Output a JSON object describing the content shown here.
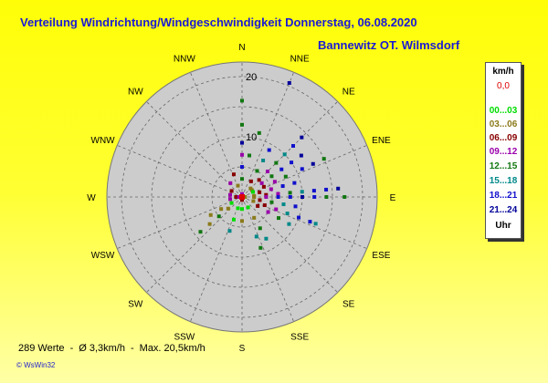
{
  "title": "Verteilung Windrichtung/Windgeschwindigkeit  Donnerstag, 06.08.2020",
  "subtitle": "Bannewitz OT. Wilmsdorf",
  "footer": {
    "count": "289 Werte",
    "separator": "-",
    "avg": "Ø 3,3km/h",
    "max": "Max. 20,5km/h"
  },
  "credit": "© WsWin32",
  "legend": {
    "unit": "km/h",
    "zero": "0,0",
    "zero_color": "#e00000",
    "entries": [
      {
        "label": "00...03",
        "color": "#00dd00"
      },
      {
        "label": "03...06",
        "color": "#8a7a1a"
      },
      {
        "label": "06...09",
        "color": "#880000"
      },
      {
        "label": "09...12",
        "color": "#9900aa"
      },
      {
        "label": "12...15",
        "color": "#117711"
      },
      {
        "label": "15...18",
        "color": "#008888"
      },
      {
        "label": "18...21",
        "color": "#1010cc"
      },
      {
        "label": "21...24",
        "color": "#000099"
      }
    ],
    "hours": "Uhr"
  },
  "chart_data": {
    "type": "scatter",
    "subtype": "polar wind rose",
    "directions": [
      "N",
      "NNE",
      "NE",
      "ENE",
      "E",
      "ESE",
      "SE",
      "SSE",
      "S",
      "SSW",
      "SW",
      "WSW",
      "W",
      "WNW",
      "NW",
      "NNW"
    ],
    "r_ticks": [
      {
        "value": 10,
        "label": "10"
      },
      {
        "value": 20,
        "label": "20"
      }
    ],
    "r_max": 22,
    "point_color_by": "hour",
    "points": [
      {
        "deg": 0,
        "r": 3,
        "c": 4
      },
      {
        "deg": 0,
        "r": 5,
        "c": 6
      },
      {
        "deg": 0,
        "r": 7,
        "c": 3
      },
      {
        "deg": 0,
        "r": 9,
        "c": 7
      },
      {
        "deg": 0,
        "r": 12,
        "c": 4
      },
      {
        "deg": 0,
        "r": 16,
        "c": 4
      },
      {
        "deg": 22.5,
        "r": 20.5,
        "c": 7
      },
      {
        "deg": 30,
        "r": 3,
        "c": 2
      },
      {
        "deg": 30,
        "r": 5,
        "c": 4
      },
      {
        "deg": 30,
        "r": 7,
        "c": 5
      },
      {
        "deg": 30,
        "r": 9,
        "c": 6
      },
      {
        "deg": 45,
        "r": 2,
        "c": 1
      },
      {
        "deg": 45,
        "r": 4,
        "c": 2
      },
      {
        "deg": 45,
        "r": 6,
        "c": 3
      },
      {
        "deg": 45,
        "r": 8,
        "c": 4
      },
      {
        "deg": 45,
        "r": 10,
        "c": 5
      },
      {
        "deg": 45,
        "r": 12,
        "c": 6
      },
      {
        "deg": 45,
        "r": 14,
        "c": 7
      },
      {
        "deg": 55,
        "r": 2,
        "c": 1
      },
      {
        "deg": 55,
        "r": 4,
        "c": 3
      },
      {
        "deg": 55,
        "r": 6,
        "c": 4
      },
      {
        "deg": 55,
        "r": 8,
        "c": 6
      },
      {
        "deg": 55,
        "r": 10,
        "c": 6
      },
      {
        "deg": 55,
        "r": 12,
        "c": 7
      },
      {
        "deg": 65,
        "r": 2,
        "c": 0
      },
      {
        "deg": 65,
        "r": 4,
        "c": 2
      },
      {
        "deg": 65,
        "r": 6,
        "c": 3
      },
      {
        "deg": 65,
        "r": 8,
        "c": 4
      },
      {
        "deg": 65,
        "r": 11,
        "c": 6
      },
      {
        "deg": 65,
        "r": 13,
        "c": 7
      },
      {
        "deg": 65,
        "r": 15,
        "c": 4
      },
      {
        "deg": 75,
        "r": 3,
        "c": 2
      },
      {
        "deg": 75,
        "r": 5,
        "c": 3
      },
      {
        "deg": 75,
        "r": 7,
        "c": 6
      },
      {
        "deg": 75,
        "r": 9,
        "c": 6
      },
      {
        "deg": 85,
        "r": 2,
        "c": 1
      },
      {
        "deg": 85,
        "r": 4,
        "c": 2
      },
      {
        "deg": 85,
        "r": 6,
        "c": 3
      },
      {
        "deg": 85,
        "r": 8,
        "c": 4
      },
      {
        "deg": 85,
        "r": 10,
        "c": 5
      },
      {
        "deg": 85,
        "r": 12,
        "c": 6
      },
      {
        "deg": 85,
        "r": 14,
        "c": 6
      },
      {
        "deg": 85,
        "r": 16,
        "c": 7
      },
      {
        "deg": 90,
        "r": 2,
        "c": 1
      },
      {
        "deg": 90,
        "r": 4,
        "c": 3
      },
      {
        "deg": 90,
        "r": 6,
        "c": 6
      },
      {
        "deg": 90,
        "r": 8,
        "c": 6
      },
      {
        "deg": 90,
        "r": 10,
        "c": 7
      },
      {
        "deg": 90,
        "r": 12,
        "c": 6
      },
      {
        "deg": 90,
        "r": 14,
        "c": 4
      },
      {
        "deg": 90,
        "r": 17,
        "c": 4
      },
      {
        "deg": 100,
        "r": 3,
        "c": 2
      },
      {
        "deg": 100,
        "r": 5,
        "c": 4
      },
      {
        "deg": 100,
        "r": 7,
        "c": 5
      },
      {
        "deg": 100,
        "r": 9,
        "c": 6
      },
      {
        "deg": 110,
        "r": 2,
        "c": 1
      },
      {
        "deg": 110,
        "r": 4,
        "c": 2
      },
      {
        "deg": 110,
        "r": 6,
        "c": 3
      },
      {
        "deg": 110,
        "r": 8,
        "c": 5
      },
      {
        "deg": 110,
        "r": 10,
        "c": 6
      },
      {
        "deg": 110,
        "r": 12,
        "c": 6
      },
      {
        "deg": 110,
        "r": 13,
        "c": 5
      },
      {
        "deg": 120,
        "r": 3,
        "c": 2
      },
      {
        "deg": 120,
        "r": 5,
        "c": 3
      },
      {
        "deg": 120,
        "r": 7,
        "c": 4
      },
      {
        "deg": 120,
        "r": 9,
        "c": 5
      },
      {
        "deg": 150,
        "r": 2,
        "c": 0
      },
      {
        "deg": 150,
        "r": 4,
        "c": 1
      },
      {
        "deg": 150,
        "r": 6,
        "c": 4
      },
      {
        "deg": 150,
        "r": 8,
        "c": 5
      },
      {
        "deg": 160,
        "r": 7,
        "c": 5
      },
      {
        "deg": 160,
        "r": 9,
        "c": 4
      },
      {
        "deg": 180,
        "r": 2,
        "c": 0
      },
      {
        "deg": 180,
        "r": 4,
        "c": 1
      },
      {
        "deg": 200,
        "r": 2,
        "c": 0
      },
      {
        "deg": 200,
        "r": 4,
        "c": 0
      },
      {
        "deg": 200,
        "r": 6,
        "c": 5
      },
      {
        "deg": 230,
        "r": 3,
        "c": 1
      },
      {
        "deg": 230,
        "r": 5,
        "c": 4
      },
      {
        "deg": 230,
        "r": 7,
        "c": 1
      },
      {
        "deg": 230,
        "r": 9,
        "c": 4
      },
      {
        "deg": 240,
        "r": 2,
        "c": 0
      },
      {
        "deg": 240,
        "r": 4,
        "c": 1
      },
      {
        "deg": 240,
        "r": 6,
        "c": 1
      },
      {
        "deg": 260,
        "r": 2,
        "c": 3
      },
      {
        "deg": 270,
        "r": 1,
        "c": 2
      },
      {
        "deg": 280,
        "r": 2,
        "c": 3
      },
      {
        "deg": 300,
        "r": 2,
        "c": 2
      },
      {
        "deg": 320,
        "r": 3,
        "c": 3
      },
      {
        "deg": 340,
        "r": 2,
        "c": 1
      },
      {
        "deg": 340,
        "r": 4,
        "c": 2
      },
      {
        "deg": 10,
        "r": 7,
        "c": 4
      },
      {
        "deg": 15,
        "r": 11,
        "c": 4
      },
      {
        "deg": 0,
        "r": 0.5,
        "c": 3
      },
      {
        "deg": 180,
        "r": 0.5,
        "c": 2
      },
      {
        "deg": 270,
        "r": 0.5,
        "c": 3
      },
      {
        "deg": 90,
        "r": 0.5,
        "c": 1
      }
    ]
  }
}
